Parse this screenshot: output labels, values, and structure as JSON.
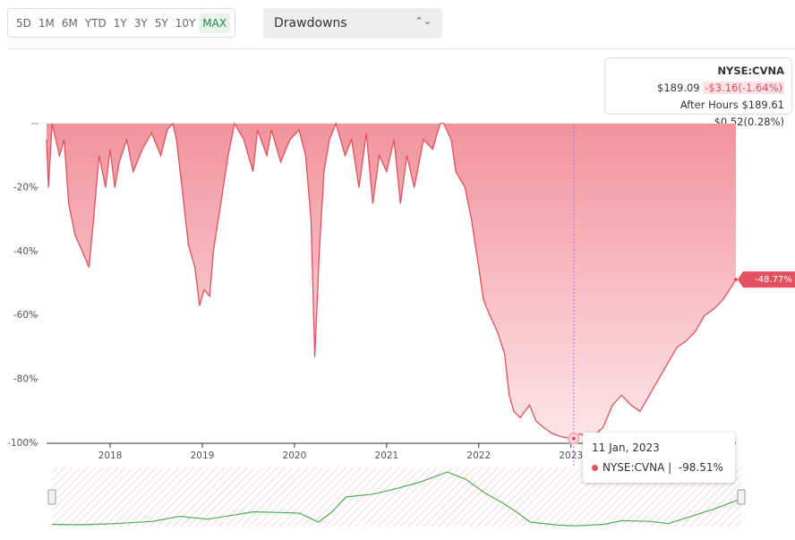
{
  "toolbar": {
    "ranges": [
      "5D",
      "1M",
      "6M",
      "YTD",
      "1Y",
      "3Y",
      "5Y",
      "10Y",
      "MAX"
    ],
    "active": "MAX",
    "dropdown": "Drawdowns"
  },
  "quote": {
    "symbol": "NYSE:CVNA",
    "price": "$189.09",
    "change": "-$3.16(-1.64%)",
    "after_hours_label": "After Hours",
    "after_hours": "$189.61 $0.52(0.28%)"
  },
  "chart_data": {
    "type": "area",
    "x": [
      2017.31,
      2017.33,
      2017.37,
      2017.45,
      2017.5,
      2017.55,
      2017.62,
      2017.7,
      2017.77,
      2017.82,
      2017.88,
      2017.95,
      2018.0,
      2018.05,
      2018.1,
      2018.18,
      2018.25,
      2018.35,
      2018.45,
      2018.55,
      2018.62,
      2018.68,
      2018.72,
      2018.78,
      2018.85,
      2018.92,
      2018.97,
      2019.02,
      2019.08,
      2019.12,
      2019.2,
      2019.28,
      2019.35,
      2019.45,
      2019.55,
      2019.6,
      2019.7,
      2019.75,
      2019.85,
      2019.95,
      2020.05,
      2020.12,
      2020.18,
      2020.22,
      2020.27,
      2020.32,
      2020.38,
      2020.45,
      2020.55,
      2020.62,
      2020.7,
      2020.78,
      2020.85,
      2020.92,
      2021.0,
      2021.08,
      2021.15,
      2021.22,
      2021.3,
      2021.4,
      2021.5,
      2021.58,
      2021.62,
      2021.7,
      2021.75,
      2021.85,
      2021.92,
      2022.0,
      2022.05,
      2022.12,
      2022.2,
      2022.28,
      2022.33,
      2022.38,
      2022.45,
      2022.55,
      2022.62,
      2022.7,
      2022.8,
      2022.9,
      2023.03,
      2023.1,
      2023.2,
      2023.35,
      2023.45,
      2023.55,
      2023.65,
      2023.75,
      2023.85,
      2023.95,
      2024.05,
      2024.15,
      2024.25,
      2024.35,
      2024.45,
      2024.55,
      2024.65,
      2024.72,
      2024.79
    ],
    "series": [
      {
        "name": "NYSE:CVNA",
        "color": "#e3515f",
        "values": [
          -5,
          -20,
          0,
          -10,
          -5,
          -25,
          -35,
          -40,
          -45,
          -30,
          -10,
          -20,
          -8,
          -20,
          -12,
          -5,
          -15,
          -8,
          -3,
          -10,
          -2,
          0,
          -5,
          -20,
          -38,
          -45,
          -57,
          -52,
          -54,
          -40,
          -25,
          -10,
          0,
          -5,
          -15,
          -2,
          -10,
          -2,
          -12,
          -5,
          -2,
          -10,
          -30,
          -73,
          -40,
          -15,
          -5,
          0,
          -10,
          -5,
          -20,
          -3,
          -25,
          -10,
          -15,
          -5,
          -25,
          -10,
          -20,
          -5,
          -8,
          0,
          0,
          -5,
          -15,
          -20,
          -30,
          -45,
          -55,
          -60,
          -65,
          -72,
          -85,
          -90,
          -92,
          -88,
          -93,
          -95,
          -97,
          -98,
          -98.51,
          -97,
          -99,
          -95,
          -88,
          -85,
          -88,
          -90,
          -85,
          -80,
          -75,
          -70,
          -68,
          -65,
          -60,
          -58,
          -55,
          -52,
          -48.77
        ]
      }
    ],
    "xlim": [
      2017.31,
      2024.79
    ],
    "xticks": [
      2018,
      2019,
      2020,
      2021,
      2022,
      2023
    ],
    "ylim": [
      -100,
      0
    ],
    "yticks": [
      {
        "value": 0,
        "label": "-"
      },
      {
        "value": -20,
        "label": "-20%"
      },
      {
        "value": -40,
        "label": "-40%"
      },
      {
        "value": -60,
        "label": "-60%"
      },
      {
        "value": -80,
        "label": "-80%"
      },
      {
        "value": -100,
        "label": "-100%"
      }
    ],
    "end_tag": {
      "value": -48.77,
      "label": "-48.77%"
    },
    "tooltip": {
      "date": "11 Jan, 2023",
      "series": "NYSE:CVNA |",
      "value": -98.51,
      "value_label": "-98.51%"
    },
    "navigator": {
      "color": "#4caf50",
      "ylim": [
        0,
        400
      ],
      "x": [
        2017.31,
        2017.6,
        2018.0,
        2018.4,
        2018.7,
        2019.0,
        2019.3,
        2019.5,
        2019.8,
        2020.0,
        2020.2,
        2020.35,
        2020.5,
        2020.8,
        2021.0,
        2021.3,
        2021.6,
        2021.8,
        2022.0,
        2022.2,
        2022.35,
        2022.5,
        2022.8,
        2023.0,
        2023.3,
        2023.5,
        2023.8,
        2024.0,
        2024.3,
        2024.5,
        2024.79
      ],
      "values": [
        15,
        12,
        20,
        35,
        70,
        50,
        80,
        100,
        95,
        90,
        30,
        100,
        200,
        220,
        250,
        300,
        370,
        320,
        230,
        160,
        100,
        30,
        10,
        5,
        15,
        40,
        35,
        20,
        80,
        120,
        189
      ]
    }
  }
}
